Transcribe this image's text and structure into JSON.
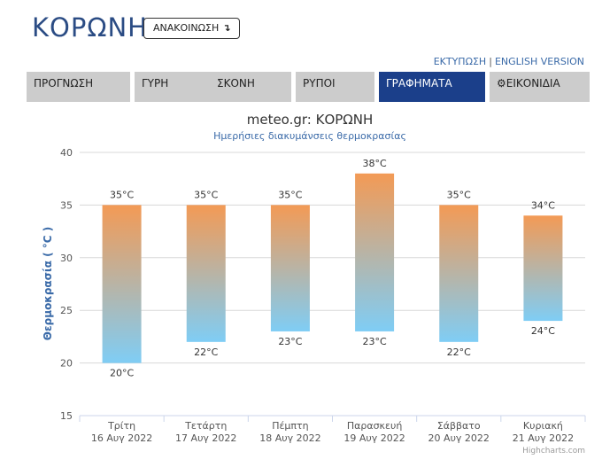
{
  "header": {
    "title": "ΚΟΡΩΝΗ",
    "announcement_button": "ΑΝΑΚΟΙΝΩΣΗ",
    "announcement_arrow": "↴"
  },
  "toplinks": {
    "print": "ΕΚΤΥΠΩΣΗ",
    "separator": "|",
    "english": "ENGLISH VERSION"
  },
  "tabs": [
    {
      "label": "ΠΡΟΓΝΩΣΗ"
    },
    {
      "label": "ΓΥΡΗ"
    },
    {
      "label": "ΣΚΟΝΗ"
    },
    {
      "label": "ΡΥΠΟΙ"
    },
    {
      "label": "ΓΡΑΦΗΜΑΤΑ",
      "active": true
    },
    {
      "label": "ΕΙΚΟΝΙΔΙΑ",
      "icon": "gear-icon"
    }
  ],
  "chart_data": {
    "type": "bar",
    "title": "meteo.gr: ΚΟΡΩΝΗ",
    "subtitle": "Ημερήσιες διακυμάνσεις θερμοκρασίας",
    "ylabel": "Θερμοκρασία ( °C )",
    "xlabel": "",
    "ylim": [
      15,
      40
    ],
    "yticks": [
      15,
      20,
      25,
      30,
      35,
      40
    ],
    "grid": true,
    "categories": [
      {
        "day": "Τρίτη",
        "date": "16 Αυγ 2022"
      },
      {
        "day": "Τετάρτη",
        "date": "17 Αυγ 2022"
      },
      {
        "day": "Πέμπτη",
        "date": "18 Αυγ 2022"
      },
      {
        "day": "Παρασκευή",
        "date": "19 Αυγ 2022"
      },
      {
        "day": "Σάββατο",
        "date": "20 Αυγ 2022"
      },
      {
        "day": "Κυριακή",
        "date": "21 Αυγ 2022"
      }
    ],
    "series": [
      {
        "low": [
          20,
          22,
          23,
          23,
          22,
          24
        ],
        "high": [
          35,
          35,
          35,
          38,
          35,
          34
        ]
      }
    ],
    "unit": "°C",
    "colors": {
      "top": "#f39a55",
      "bottom": "#7fcdf5"
    },
    "credits": "Highcharts.com"
  }
}
